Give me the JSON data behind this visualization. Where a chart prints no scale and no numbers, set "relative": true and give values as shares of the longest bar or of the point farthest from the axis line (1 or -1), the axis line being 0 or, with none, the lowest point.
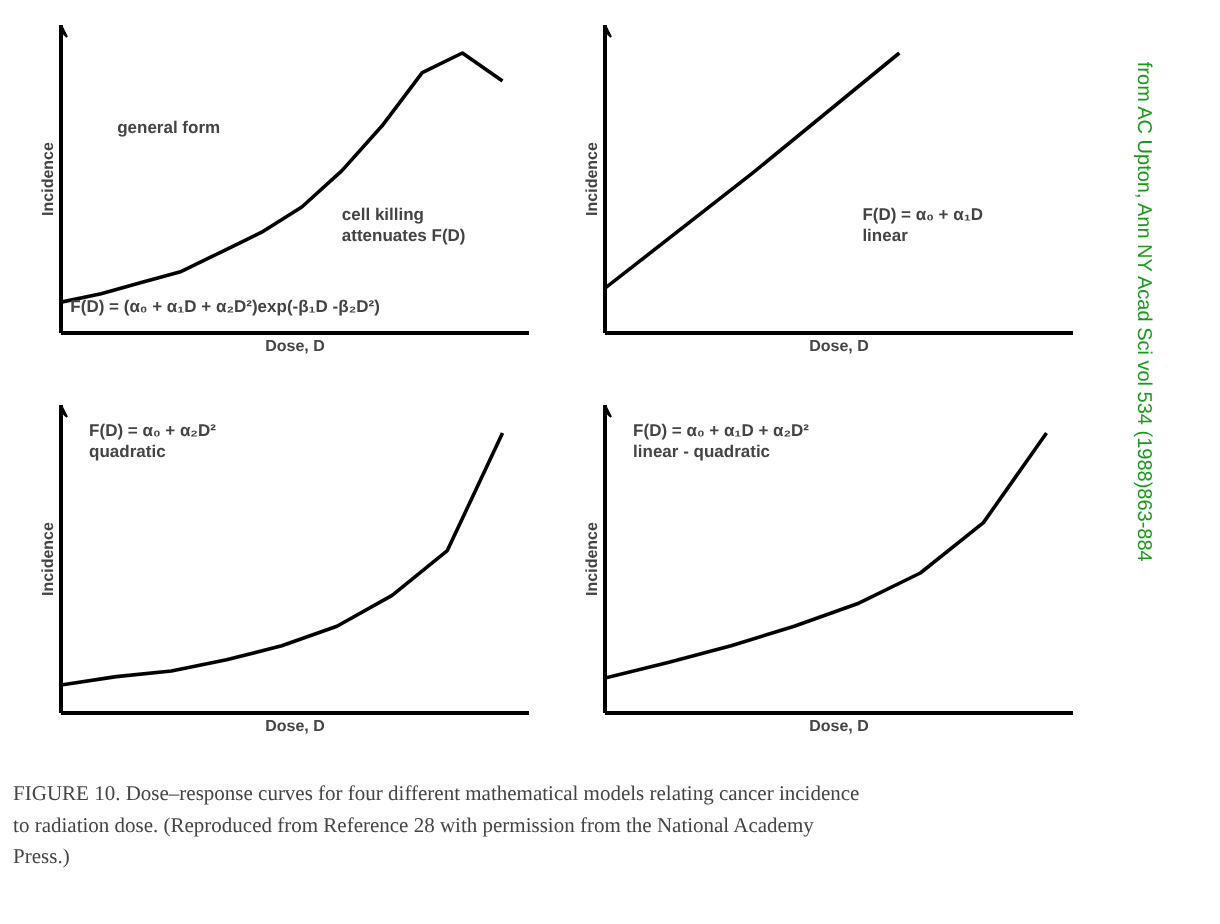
{
  "chart_data": [
    {
      "type": "line",
      "relative": true,
      "xlabel": "Dose, D",
      "ylabel": "Incidence",
      "categories": [
        null,
        null,
        null,
        null,
        null,
        null,
        null,
        null,
        null,
        null,
        null,
        null
      ],
      "series": [
        {
          "color": "#000000",
          "values": [
            0.11,
            0.14,
            0.18,
            0.22,
            0.29,
            0.36,
            0.45,
            0.58,
            0.74,
            0.93,
            1,
            0.9
          ]
        }
      ],
      "annotations": [
        "general form",
        "cell killing\nattenuates F(D)",
        "F(D) = (α₀ + α₁D + α₂D²)exp(-β₁D -β₂D²)"
      ]
    },
    {
      "type": "line",
      "relative": true,
      "xlabel": "Dose, D",
      "ylabel": "Incidence",
      "categories": [
        null,
        null,
        null,
        null
      ],
      "series": [
        {
          "color": "#000000",
          "values": [
            0.16,
            0.57,
            1,
            null
          ]
        }
      ],
      "annotations": [
        "F(D) = α₀ + α₁D\nlinear"
      ]
    },
    {
      "type": "line",
      "relative": true,
      "xlabel": "Dose, D",
      "ylabel": "Incidence",
      "categories": [
        null,
        null,
        null,
        null,
        null,
        null,
        null,
        null,
        null
      ],
      "series": [
        {
          "color": "#000000",
          "values": [
            0.1,
            0.13,
            0.15,
            0.19,
            0.24,
            0.31,
            0.42,
            0.58,
            1
          ]
        }
      ],
      "annotations": [
        "F(D) = α₀ + α₂D²\nquadratic"
      ]
    },
    {
      "type": "line",
      "relative": true,
      "xlabel": "Dose, D",
      "ylabel": "Incidence",
      "categories": [
        null,
        null,
        null,
        null,
        null,
        null,
        null,
        null
      ],
      "series": [
        {
          "color": "#000000",
          "values": [
            0.125,
            0.18,
            0.24,
            0.31,
            0.39,
            0.5,
            0.68,
            1
          ]
        }
      ],
      "annotations": [
        "F(D) = α₀ + α₁D + α₂D²\nlinear - quadratic",
        "FIGURE 10. Dose–response curves for four different mathematical models relating cancer incidence to radiation dose. (Reproduced from Reference 28 with permission from the National Academy Press.)",
        "from AC Upton, Ann NY Acad Sci vol 534 (1988)863-884"
      ]
    }
  ]
}
